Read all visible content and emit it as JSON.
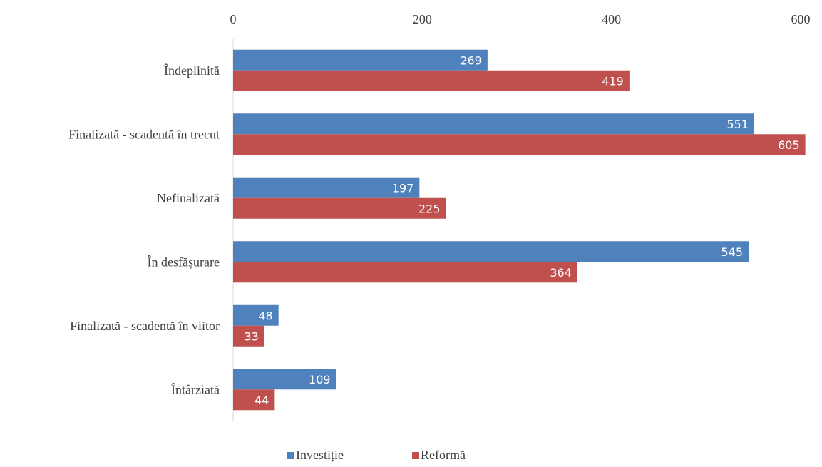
{
  "chart_data": {
    "type": "bar",
    "orientation": "horizontal",
    "categories": [
      "Îndeplinită",
      "Finalizată - scadentă în trecut",
      "Nefinalizată",
      "În desfășurare",
      "Finalizată - scadentă în viitor",
      "Întârziată"
    ],
    "series": [
      {
        "name": "Investiție",
        "color": "#4f81bd",
        "values": [
          269,
          551,
          197,
          545,
          48,
          109
        ]
      },
      {
        "name": "Reformă",
        "color": "#c0504d",
        "values": [
          419,
          605,
          225,
          364,
          33,
          44
        ]
      }
    ],
    "xticks": [
      0,
      200,
      400,
      600
    ],
    "xlim": [
      0,
      600
    ],
    "x_axis_position": "top",
    "grid": false,
    "data_labels": true,
    "legend_position": "bottom-center"
  }
}
